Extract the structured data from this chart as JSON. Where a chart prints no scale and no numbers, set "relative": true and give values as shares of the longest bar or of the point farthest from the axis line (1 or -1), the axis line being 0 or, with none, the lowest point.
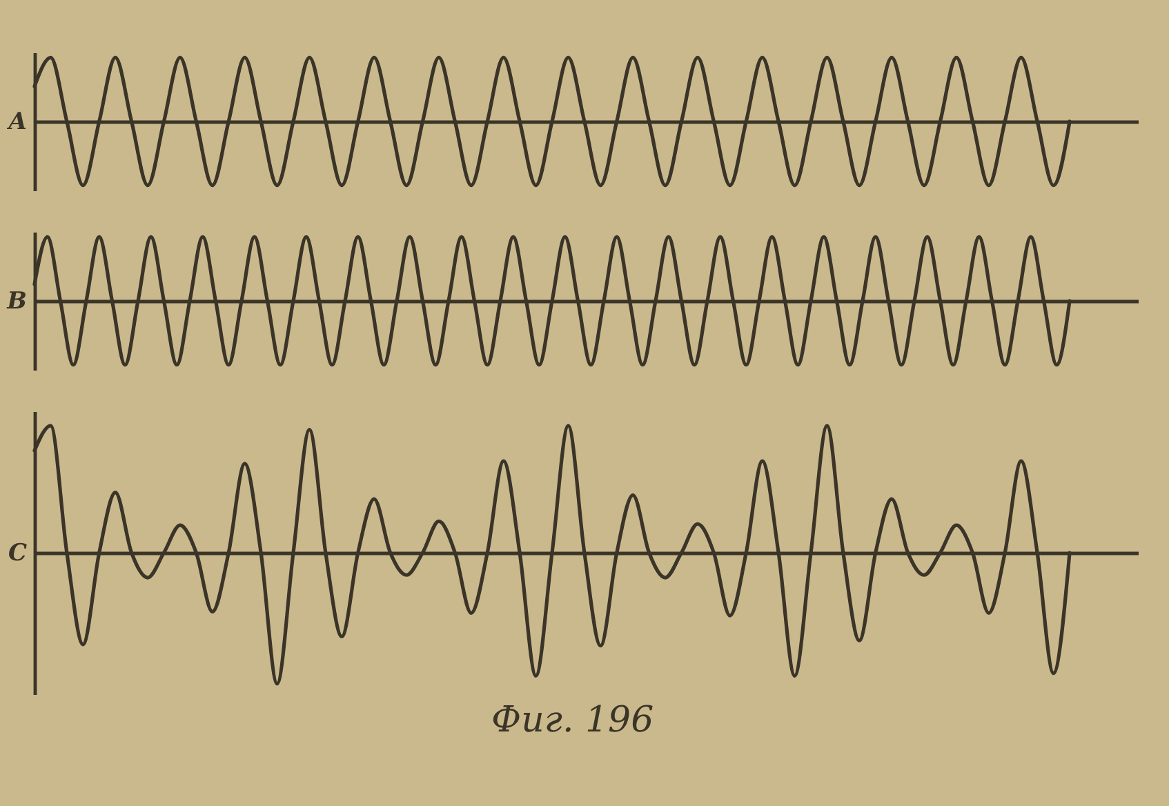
{
  "chart_data": [
    {
      "type": "line",
      "ylabel": "A",
      "relative": true,
      "tick_labels": false,
      "grid": false,
      "legend": false,
      "color": "#3b3428",
      "categories": [
        null,
        null,
        null,
        null,
        null,
        null,
        null,
        null,
        null,
        null,
        null,
        null,
        null,
        null,
        null,
        null,
        null,
        null,
        null,
        null,
        null,
        null,
        null,
        null,
        null,
        null,
        null,
        null,
        null,
        null,
        null,
        null,
        null,
        null,
        null,
        null,
        null,
        null,
        null,
        null,
        null,
        null,
        null,
        null,
        null,
        null,
        null,
        null,
        null,
        null,
        null,
        null,
        null,
        null,
        null,
        null,
        null,
        null,
        null,
        null,
        null,
        null,
        null,
        null,
        null
      ],
      "values": [
        0.55,
        1,
        0,
        -1,
        0,
        1,
        0,
        -1,
        0,
        1,
        0,
        -1,
        0,
        1,
        0,
        -1,
        0,
        1,
        0,
        -1,
        0,
        1,
        0,
        -1,
        0,
        1,
        0,
        -1,
        0,
        1,
        0,
        -1,
        0,
        1,
        0,
        -1,
        0,
        1,
        0,
        -1,
        0,
        1,
        0,
        -1,
        0,
        1,
        0,
        -1,
        0,
        1,
        0,
        -1,
        0,
        1,
        0,
        -1,
        0,
        1,
        0,
        -1,
        0,
        1,
        0,
        -1,
        0
      ]
    },
    {
      "type": "line",
      "ylabel": "B",
      "relative": true,
      "tick_labels": false,
      "grid": false,
      "legend": false,
      "color": "#3b3428",
      "categories": [
        null,
        null,
        null,
        null,
        null,
        null,
        null,
        null,
        null,
        null,
        null,
        null,
        null,
        null,
        null,
        null,
        null,
        null,
        null,
        null,
        null,
        null,
        null,
        null,
        null,
        null,
        null,
        null,
        null,
        null,
        null,
        null,
        null,
        null,
        null,
        null,
        null,
        null,
        null,
        null,
        null,
        null,
        null,
        null,
        null,
        null,
        null,
        null,
        null,
        null,
        null,
        null,
        null,
        null,
        null,
        null,
        null,
        null,
        null,
        null,
        null,
        null,
        null,
        null,
        null,
        null,
        null,
        null,
        null,
        null,
        null,
        null,
        null,
        null,
        null,
        null,
        null,
        null,
        null,
        null,
        null
      ],
      "values": [
        0.26,
        1,
        0,
        -1,
        0,
        1,
        0,
        -1,
        0,
        1,
        0,
        -1,
        0,
        1,
        0,
        -1,
        0,
        1,
        0,
        -1,
        0,
        1,
        0,
        -1,
        0,
        1,
        0,
        -1,
        0,
        1,
        0,
        -1,
        0,
        1,
        0,
        -1,
        0,
        1,
        0,
        -1,
        0,
        1,
        0,
        -1,
        0,
        1,
        0,
        -1,
        0,
        1,
        0,
        -1,
        0,
        1,
        0,
        -1,
        0,
        1,
        0,
        -1,
        0,
        1,
        0,
        -1,
        0,
        1,
        0,
        -1,
        0,
        1,
        0,
        -1,
        0,
        1,
        0,
        -1,
        0,
        1,
        0,
        -1,
        0
      ]
    },
    {
      "type": "line",
      "ylabel": "C",
      "relative": true,
      "tick_labels": false,
      "grid": false,
      "legend": false,
      "color": "#3b3428",
      "annotations": [
        "Фиг. 196"
      ],
      "categories": [
        null,
        null,
        null,
        null,
        null,
        null,
        null,
        null,
        null,
        null,
        null,
        null,
        null,
        null,
        null,
        null,
        null,
        null,
        null,
        null,
        null,
        null,
        null,
        null,
        null,
        null,
        null,
        null,
        null,
        null,
        null,
        null,
        null,
        null,
        null,
        null,
        null,
        null,
        null,
        null,
        null,
        null,
        null,
        null,
        null,
        null,
        null,
        null,
        null,
        null,
        null,
        null,
        null,
        null,
        null,
        null,
        null,
        null,
        null,
        null,
        null,
        null,
        null,
        null,
        null
      ],
      "values": [
        0.78,
        0.97,
        0,
        -0.7,
        0,
        0.46,
        0,
        -0.19,
        0,
        0.21,
        0,
        -0.45,
        0,
        0.68,
        0,
        -1,
        0,
        0.94,
        0,
        -0.64,
        0,
        0.41,
        0,
        -0.17,
        0,
        0.24,
        0,
        -0.46,
        0,
        0.7,
        0,
        -0.94,
        0,
        0.97,
        0,
        -0.71,
        0,
        0.44,
        0,
        -0.19,
        0,
        0.22,
        0,
        -0.48,
        0,
        0.7,
        0,
        -0.94,
        0,
        0.97,
        0,
        -0.67,
        0,
        0.41,
        0,
        -0.17,
        0,
        0.21,
        0,
        -0.46,
        0,
        0.7,
        0,
        -0.92,
        0
      ]
    }
  ]
}
